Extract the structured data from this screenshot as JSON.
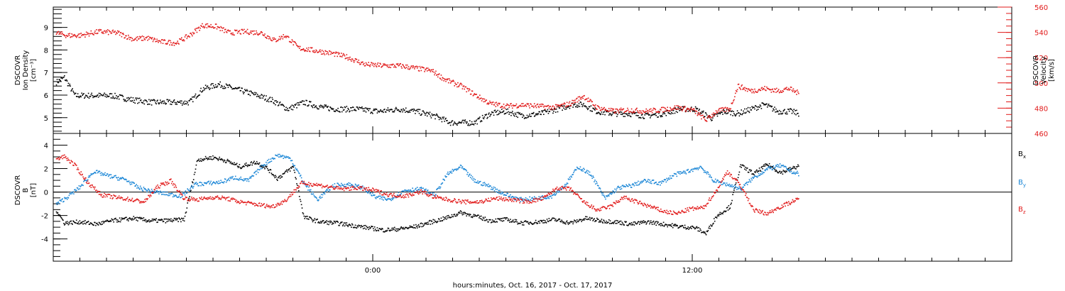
{
  "colors": {
    "black": "#000000",
    "red": "#e11919",
    "blue": "#1a86d6",
    "frame": "#000000"
  },
  "x_axis": {
    "label": "hours:minutes, Oct. 16, 2017 - Oct. 17, 2017",
    "range_hours": [
      -12,
      24
    ],
    "tick_labels": [
      {
        "hour": 0,
        "label": "0:00"
      },
      {
        "hour": 12,
        "label": "12:00"
      }
    ]
  },
  "chart_data": [
    {
      "type": "scatter",
      "panel": "top",
      "ylabel_left": [
        "DSCOVR",
        "Ion Density",
        "[cm⁻³]"
      ],
      "ylabel_right": [
        "DSCOVR",
        "Velocity",
        "[km/s]"
      ],
      "ylim_left": [
        4.3,
        9.9
      ],
      "ylim_right": [
        460,
        560
      ],
      "yticks_left": [
        "5",
        "6",
        "7",
        "8",
        "9"
      ],
      "yticks_right": [
        "460",
        "480",
        "500",
        "520",
        "540",
        "560"
      ],
      "series": [
        {
          "name": "Ion Density",
          "axis": "left",
          "color": "#000000",
          "points": [
            [
              -11.9,
              6.6
            ],
            [
              -11.6,
              6.8
            ],
            [
              -11.2,
              6.0
            ],
            [
              -10.5,
              6.0
            ],
            [
              -9.8,
              6.0
            ],
            [
              -9.0,
              5.8
            ],
            [
              -8.3,
              5.7
            ],
            [
              -7.5,
              5.7
            ],
            [
              -6.9,
              5.7
            ],
            [
              -6.4,
              6.3
            ],
            [
              -5.8,
              6.5
            ],
            [
              -5.2,
              6.3
            ],
            [
              -4.6,
              6.1
            ],
            [
              -3.8,
              5.8
            ],
            [
              -3.2,
              5.4
            ],
            [
              -2.6,
              5.7
            ],
            [
              -2.0,
              5.5
            ],
            [
              -1.4,
              5.4
            ],
            [
              -0.6,
              5.4
            ],
            [
              0.2,
              5.3
            ],
            [
              1.0,
              5.4
            ],
            [
              1.6,
              5.3
            ],
            [
              2.3,
              5.1
            ],
            [
              2.9,
              4.8
            ],
            [
              3.8,
              4.8
            ],
            [
              4.4,
              5.2
            ],
            [
              5.0,
              5.3
            ],
            [
              5.6,
              5.1
            ],
            [
              6.3,
              5.2
            ],
            [
              6.9,
              5.4
            ],
            [
              7.5,
              5.6
            ],
            [
              7.9,
              5.6
            ],
            [
              8.4,
              5.3
            ],
            [
              9.0,
              5.2
            ],
            [
              9.6,
              5.2
            ],
            [
              10.2,
              5.1
            ],
            [
              10.9,
              5.2
            ],
            [
              11.5,
              5.4
            ],
            [
              12.1,
              5.4
            ],
            [
              12.7,
              5.0
            ],
            [
              13.2,
              5.3
            ],
            [
              13.7,
              5.2
            ],
            [
              14.2,
              5.4
            ],
            [
              14.7,
              5.6
            ],
            [
              15.2,
              5.3
            ],
            [
              15.7,
              5.3
            ],
            [
              16.0,
              5.2
            ]
          ]
        },
        {
          "name": "Velocity",
          "axis": "right",
          "color": "#e11919",
          "points": [
            [
              -11.9,
              540
            ],
            [
              -11.5,
              538
            ],
            [
              -11.0,
              538
            ],
            [
              -10.3,
              541
            ],
            [
              -9.6,
              540
            ],
            [
              -9.0,
              535
            ],
            [
              -8.5,
              536
            ],
            [
              -8.0,
              533
            ],
            [
              -7.4,
              532
            ],
            [
              -6.9,
              538
            ],
            [
              -6.4,
              546
            ],
            [
              -5.9,
              545
            ],
            [
              -5.4,
              540
            ],
            [
              -4.8,
              541
            ],
            [
              -4.2,
              540
            ],
            [
              -3.7,
              534
            ],
            [
              -3.3,
              538
            ],
            [
              -2.8,
              528
            ],
            [
              -2.2,
              526
            ],
            [
              -1.6,
              524
            ],
            [
              -1.0,
              521
            ],
            [
              -0.3,
              515
            ],
            [
              0.4,
              514
            ],
            [
              1.0,
              514
            ],
            [
              1.6,
              512
            ],
            [
              2.2,
              510
            ],
            [
              2.7,
              503
            ],
            [
              3.3,
              498
            ],
            [
              3.9,
              490
            ],
            [
              4.4,
              484
            ],
            [
              5.0,
              482
            ],
            [
              5.6,
              483
            ],
            [
              6.2,
              482
            ],
            [
              6.8,
              481
            ],
            [
              7.4,
              484
            ],
            [
              7.9,
              490
            ],
            [
              8.4,
              481
            ],
            [
              9.0,
              478
            ],
            [
              9.6,
              479
            ],
            [
              10.2,
              478
            ],
            [
              10.8,
              479
            ],
            [
              11.4,
              481
            ],
            [
              12.0,
              479
            ],
            [
              12.5,
              471
            ],
            [
              12.9,
              478
            ],
            [
              13.4,
              480
            ],
            [
              13.7,
              498
            ],
            [
              14.2,
              494
            ],
            [
              14.7,
              496
            ],
            [
              15.2,
              494
            ],
            [
              15.6,
              496
            ],
            [
              16.0,
              492
            ]
          ]
        }
      ]
    },
    {
      "type": "scatter",
      "panel": "bottom",
      "ylabel_left": [
        "DSCOVR",
        "B",
        "[nT]"
      ],
      "ylim": [
        -5.9,
        5.0
      ],
      "yticks": [
        "-4",
        "-2",
        "0",
        "2",
        "4"
      ],
      "zero_line": true,
      "series": [
        {
          "name": "B",
          "subscript": "x",
          "color": "#000000",
          "points": [
            [
              -11.9,
              -1.5
            ],
            [
              -11.6,
              -2.6
            ],
            [
              -11.0,
              -2.5
            ],
            [
              -10.4,
              -2.7
            ],
            [
              -9.8,
              -2.4
            ],
            [
              -9.0,
              -2.2
            ],
            [
              -8.4,
              -2.4
            ],
            [
              -7.8,
              -2.4
            ],
            [
              -7.1,
              -2.3
            ],
            [
              -6.6,
              2.8
            ],
            [
              -6.0,
              3.0
            ],
            [
              -5.5,
              2.7
            ],
            [
              -5.0,
              2.2
            ],
            [
              -4.4,
              2.6
            ],
            [
              -4.0,
              2.1
            ],
            [
              -3.6,
              1.2
            ],
            [
              -3.0,
              2.2
            ],
            [
              -2.6,
              -2.1
            ],
            [
              -2.0,
              -2.5
            ],
            [
              -1.4,
              -2.6
            ],
            [
              -0.8,
              -2.8
            ],
            [
              -0.2,
              -3.0
            ],
            [
              0.4,
              -3.2
            ],
            [
              1.0,
              -3.1
            ],
            [
              1.6,
              -2.9
            ],
            [
              2.2,
              -2.5
            ],
            [
              2.7,
              -2.2
            ],
            [
              3.3,
              -1.7
            ],
            [
              3.8,
              -2.0
            ],
            [
              4.4,
              -2.4
            ],
            [
              5.0,
              -2.3
            ],
            [
              5.6,
              -2.6
            ],
            [
              6.2,
              -2.5
            ],
            [
              6.8,
              -2.3
            ],
            [
              7.4,
              -2.6
            ],
            [
              8.0,
              -2.2
            ],
            [
              8.5,
              -2.4
            ],
            [
              9.1,
              -2.5
            ],
            [
              9.7,
              -2.7
            ],
            [
              10.3,
              -2.5
            ],
            [
              10.9,
              -2.7
            ],
            [
              11.5,
              -2.9
            ],
            [
              12.1,
              -3.0
            ],
            [
              12.5,
              -3.5
            ],
            [
              12.9,
              -2.0
            ],
            [
              13.4,
              -1.2
            ],
            [
              13.8,
              2.3
            ],
            [
              14.3,
              1.6
            ],
            [
              14.8,
              2.4
            ],
            [
              15.3,
              1.7
            ],
            [
              15.8,
              2.1
            ],
            [
              16.0,
              2.3
            ]
          ]
        },
        {
          "name": "B",
          "subscript": "y",
          "color": "#1a86d6",
          "points": [
            [
              -11.9,
              -1.0
            ],
            [
              -11.5,
              -0.4
            ],
            [
              -11.0,
              0.5
            ],
            [
              -10.5,
              1.8
            ],
            [
              -9.9,
              1.4
            ],
            [
              -9.3,
              1.1
            ],
            [
              -8.8,
              0.4
            ],
            [
              -8.3,
              0.1
            ],
            [
              -7.8,
              -0.1
            ],
            [
              -7.2,
              -0.3
            ],
            [
              -6.7,
              0.7
            ],
            [
              -6.2,
              0.8
            ],
            [
              -5.7,
              0.9
            ],
            [
              -5.2,
              1.3
            ],
            [
              -4.7,
              1.0
            ],
            [
              -4.1,
              2.4
            ],
            [
              -3.6,
              3.2
            ],
            [
              -3.1,
              2.9
            ],
            [
              -2.6,
              0.8
            ],
            [
              -2.1,
              -0.6
            ],
            [
              -1.5,
              0.6
            ],
            [
              -0.9,
              0.7
            ],
            [
              -0.4,
              0.4
            ],
            [
              0.1,
              -0.4
            ],
            [
              0.6,
              -0.6
            ],
            [
              1.2,
              0.2
            ],
            [
              1.8,
              0.3
            ],
            [
              2.3,
              -0.2
            ],
            [
              2.8,
              1.6
            ],
            [
              3.3,
              2.2
            ],
            [
              3.8,
              1.0
            ],
            [
              4.3,
              0.6
            ],
            [
              4.9,
              -0.1
            ],
            [
              5.5,
              -0.6
            ],
            [
              6.1,
              -0.5
            ],
            [
              6.7,
              -0.3
            ],
            [
              7.2,
              0.6
            ],
            [
              7.7,
              2.2
            ],
            [
              8.2,
              1.5
            ],
            [
              8.7,
              -0.5
            ],
            [
              9.2,
              0.4
            ],
            [
              9.7,
              0.6
            ],
            [
              10.2,
              1.0
            ],
            [
              10.8,
              0.8
            ],
            [
              11.3,
              1.5
            ],
            [
              11.8,
              1.8
            ],
            [
              12.3,
              2.2
            ],
            [
              12.8,
              1.0
            ],
            [
              13.3,
              0.7
            ],
            [
              13.8,
              0.3
            ],
            [
              14.3,
              1.3
            ],
            [
              14.8,
              2.0
            ],
            [
              15.3,
              2.3
            ],
            [
              15.8,
              1.7
            ],
            [
              16.0,
              1.6
            ]
          ]
        },
        {
          "name": "B",
          "subscript": "z",
          "color": "#e11919",
          "points": [
            [
              -11.9,
              2.8
            ],
            [
              -11.6,
              3.1
            ],
            [
              -11.2,
              2.3
            ],
            [
              -10.7,
              0.8
            ],
            [
              -10.2,
              -0.2
            ],
            [
              -9.7,
              -0.4
            ],
            [
              -9.1,
              -0.6
            ],
            [
              -8.6,
              -0.8
            ],
            [
              -8.1,
              0.5
            ],
            [
              -7.6,
              1.0
            ],
            [
              -7.1,
              -0.5
            ],
            [
              -6.6,
              -0.6
            ],
            [
              -6.0,
              -0.4
            ],
            [
              -5.5,
              -0.5
            ],
            [
              -5.0,
              -0.8
            ],
            [
              -4.4,
              -1.0
            ],
            [
              -3.8,
              -1.2
            ],
            [
              -3.3,
              -0.7
            ],
            [
              -2.7,
              0.8
            ],
            [
              -2.2,
              0.7
            ],
            [
              -1.7,
              0.5
            ],
            [
              -1.2,
              0.3
            ],
            [
              -0.6,
              0.4
            ],
            [
              0.0,
              0.2
            ],
            [
              0.6,
              -0.2
            ],
            [
              1.2,
              -0.3
            ],
            [
              1.8,
              0.1
            ],
            [
              2.3,
              -0.4
            ],
            [
              2.8,
              -0.6
            ],
            [
              3.4,
              -0.8
            ],
            [
              4.0,
              -0.8
            ],
            [
              4.6,
              -0.5
            ],
            [
              5.2,
              -0.6
            ],
            [
              5.8,
              -0.8
            ],
            [
              6.4,
              -0.5
            ],
            [
              6.9,
              0.4
            ],
            [
              7.4,
              0.3
            ],
            [
              7.9,
              -0.8
            ],
            [
              8.4,
              -1.5
            ],
            [
              8.9,
              -1.2
            ],
            [
              9.4,
              -0.4
            ],
            [
              9.9,
              -0.8
            ],
            [
              10.4,
              -1.2
            ],
            [
              10.9,
              -1.6
            ],
            [
              11.4,
              -1.8
            ],
            [
              11.9,
              -1.4
            ],
            [
              12.4,
              -1.3
            ],
            [
              12.9,
              0.2
            ],
            [
              13.3,
              1.8
            ],
            [
              13.8,
              0.6
            ],
            [
              14.3,
              -1.5
            ],
            [
              14.8,
              -1.8
            ],
            [
              15.3,
              -1.2
            ],
            [
              15.8,
              -0.7
            ],
            [
              16.0,
              -0.6
            ]
          ]
        }
      ]
    }
  ]
}
